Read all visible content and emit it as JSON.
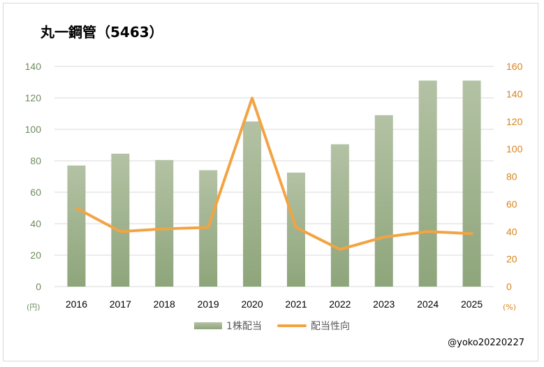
{
  "chart_data": {
    "type": "bar",
    "title": "丸一鋼管（5463）",
    "categories": [
      "2016",
      "2017",
      "2018",
      "2019",
      "2020",
      "2021",
      "2022",
      "2023",
      "2024",
      "2025"
    ],
    "series": [
      {
        "name": "1株配当",
        "type": "bar",
        "axis": "left",
        "color": "#9cb088",
        "values": [
          77,
          84.5,
          80.5,
          74,
          105,
          72.5,
          90.5,
          109,
          131,
          131
        ]
      },
      {
        "name": "配当性向",
        "type": "line",
        "axis": "right",
        "color": "#f2a443",
        "values": [
          57,
          40,
          42,
          43,
          137,
          43,
          27,
          36,
          40,
          38.5
        ]
      }
    ],
    "y_left": {
      "min": 0,
      "max": 140,
      "step": 20,
      "unit": "(円)",
      "ticks": [
        "0",
        "20",
        "40",
        "60",
        "80",
        "100",
        "120",
        "140"
      ]
    },
    "y_right": {
      "min": 0,
      "max": 160,
      "step": 20,
      "unit": "(%)",
      "ticks": [
        "0",
        "20",
        "40",
        "60",
        "80",
        "100",
        "120",
        "140",
        "160"
      ]
    },
    "grid": true,
    "legend_position": "bottom"
  },
  "credit": "@yoko20220227"
}
